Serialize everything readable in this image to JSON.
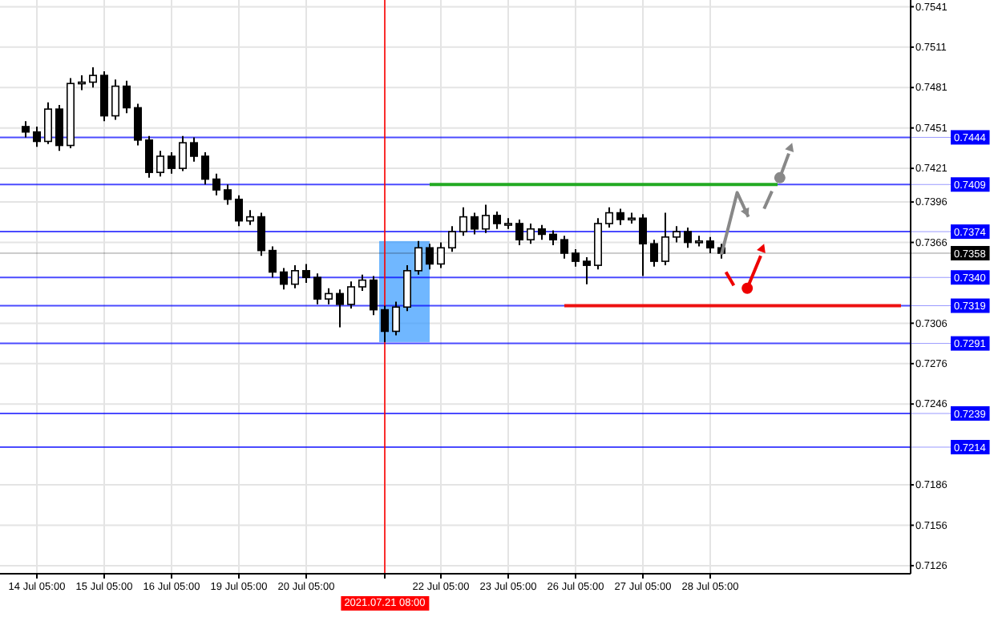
{
  "chart_data": {
    "type": "candlestick",
    "categories": [
      null,
      "14 Jul 05:00",
      null,
      null,
      null,
      null,
      null,
      "15 Jul 05:00",
      null,
      null,
      null,
      null,
      null,
      "16 Jul 05:00",
      null,
      null,
      null,
      null,
      null,
      "19 Jul 05:00",
      null,
      null,
      null,
      null,
      null,
      "20 Jul 05:00",
      null,
      null,
      null,
      null,
      null,
      null,
      "2021.07.21 08:00",
      null,
      null,
      null,
      null,
      "22 Jul 05:00",
      null,
      null,
      null,
      null,
      null,
      "23 Jul 05:00",
      null,
      null,
      null,
      null,
      null,
      "26 Jul 05:00",
      null,
      null,
      null,
      null,
      null,
      "27 Jul 05:00",
      null,
      null,
      null,
      null,
      null,
      "28 Jul 05:00",
      null,
      null,
      null,
      null,
      null,
      null,
      null,
      null,
      null,
      null,
      null,
      null,
      null,
      null,
      null,
      null,
      null
    ],
    "ohlc": [
      [
        0.7452,
        0.7456,
        0.7444,
        0.7448
      ],
      [
        0.7448,
        0.7452,
        0.7437,
        0.7441
      ],
      [
        0.7441,
        0.747,
        0.7439,
        0.7465
      ],
      [
        0.7465,
        0.7468,
        0.7434,
        0.7438
      ],
      [
        0.7438,
        0.7488,
        0.7436,
        0.7484
      ],
      [
        0.7484,
        0.749,
        0.7479,
        0.7485
      ],
      [
        0.7485,
        0.7496,
        0.7481,
        0.749
      ],
      [
        0.749,
        0.7493,
        0.7456,
        0.746
      ],
      [
        0.746,
        0.7487,
        0.7457,
        0.7482
      ],
      [
        0.7482,
        0.7486,
        0.7462,
        0.7466
      ],
      [
        0.7466,
        0.7469,
        0.7438,
        0.7442
      ],
      [
        0.7442,
        0.7445,
        0.7414,
        0.7418
      ],
      [
        0.7418,
        0.7434,
        0.7415,
        0.743
      ],
      [
        0.743,
        0.7433,
        0.7417,
        0.7421
      ],
      [
        0.7421,
        0.7445,
        0.7419,
        0.744
      ],
      [
        0.744,
        0.7444,
        0.7426,
        0.743
      ],
      [
        0.743,
        0.7433,
        0.7409,
        0.7413
      ],
      [
        0.7413,
        0.7417,
        0.7401,
        0.7405
      ],
      [
        0.7405,
        0.7409,
        0.7394,
        0.7398
      ],
      [
        0.7398,
        0.7401,
        0.7378,
        0.7382
      ],
      [
        0.7382,
        0.739,
        0.7379,
        0.7385
      ],
      [
        0.7385,
        0.7388,
        0.7356,
        0.736
      ],
      [
        0.736,
        0.7363,
        0.734,
        0.7344
      ],
      [
        0.7344,
        0.7347,
        0.7331,
        0.7335
      ],
      [
        0.7335,
        0.7349,
        0.7332,
        0.7345
      ],
      [
        0.7345,
        0.735,
        0.7336,
        0.734
      ],
      [
        0.734,
        0.7343,
        0.732,
        0.7324
      ],
      [
        0.7324,
        0.7332,
        0.732,
        0.7328
      ],
      [
        0.7328,
        0.7331,
        0.7303,
        0.732
      ],
      [
        0.732,
        0.7337,
        0.7317,
        0.7333
      ],
      [
        0.7333,
        0.7342,
        0.733,
        0.7338
      ],
      [
        0.7338,
        0.7341,
        0.7312,
        0.7316
      ],
      [
        0.7316,
        0.7319,
        0.7292,
        0.73
      ],
      [
        0.73,
        0.7322,
        0.7297,
        0.7318
      ],
      [
        0.7318,
        0.7349,
        0.7315,
        0.7345
      ],
      [
        0.7345,
        0.7367,
        0.7342,
        0.7362
      ],
      [
        0.7362,
        0.7365,
        0.7346,
        0.735
      ],
      [
        0.735,
        0.7366,
        0.7347,
        0.7362
      ],
      [
        0.7362,
        0.7378,
        0.7359,
        0.7374
      ],
      [
        0.7374,
        0.7392,
        0.7371,
        0.7385
      ],
      [
        0.7385,
        0.7388,
        0.7372,
        0.7376
      ],
      [
        0.7376,
        0.7394,
        0.7373,
        0.7386
      ],
      [
        0.7386,
        0.7389,
        0.7376,
        0.738
      ],
      [
        0.738,
        0.7384,
        0.7376,
        0.738
      ],
      [
        0.738,
        0.7383,
        0.7364,
        0.7368
      ],
      [
        0.7368,
        0.738,
        0.7365,
        0.7376
      ],
      [
        0.7376,
        0.7379,
        0.7368,
        0.7372
      ],
      [
        0.7372,
        0.7375,
        0.7364,
        0.7368
      ],
      [
        0.7368,
        0.7371,
        0.7354,
        0.7358
      ],
      [
        0.7358,
        0.7361,
        0.7348,
        0.7352
      ],
      [
        0.7352,
        0.7355,
        0.7335,
        0.7349
      ],
      [
        0.7349,
        0.7384,
        0.7346,
        0.738
      ],
      [
        0.738,
        0.7392,
        0.7377,
        0.7388
      ],
      [
        0.7388,
        0.7391,
        0.7379,
        0.7383
      ],
      [
        0.7383,
        0.7388,
        0.738,
        0.7384
      ],
      [
        0.7384,
        0.7387,
        0.7341,
        0.7365
      ],
      [
        0.7365,
        0.7368,
        0.7348,
        0.7352
      ],
      [
        0.7352,
        0.7388,
        0.7349,
        0.737
      ],
      [
        0.737,
        0.7378,
        0.7366,
        0.7374
      ],
      [
        0.7374,
        0.7377,
        0.7362,
        0.7366
      ],
      [
        0.7366,
        0.7371,
        0.7363,
        0.7367
      ],
      [
        0.7367,
        0.737,
        0.7358,
        0.7362
      ],
      [
        0.7362,
        0.7365,
        0.7354,
        0.7358
      ],
      null,
      null,
      null,
      null,
      null,
      null,
      null,
      null,
      null,
      null,
      null,
      null,
      null,
      null,
      null,
      null
    ],
    "series": [
      {
        "type": "line",
        "color": "#22aa22",
        "values": [
          null,
          null,
          null,
          null,
          null,
          null,
          null,
          null,
          null,
          null,
          null,
          null,
          null,
          null,
          null,
          null,
          null,
          null,
          null,
          null,
          null,
          null,
          null,
          null,
          null,
          null,
          null,
          null,
          null,
          null,
          null,
          null,
          null,
          null,
          null,
          null,
          0.7409,
          0.7409,
          0.7409,
          0.7409,
          0.7409,
          0.7409,
          0.7409,
          0.7409,
          0.7409,
          0.7409,
          0.7409,
          0.7409,
          0.7409,
          0.7409,
          0.7409,
          0.7409,
          0.7409,
          0.7409,
          0.7409,
          0.7409,
          0.7409,
          0.7409,
          0.7409,
          0.7409,
          0.7409,
          0.7409,
          0.7409,
          0.7409,
          0.7409,
          0.7409,
          0.7409,
          0.7409,
          null,
          null,
          null,
          null,
          null,
          null,
          null,
          null,
          null,
          null,
          null
        ]
      },
      {
        "type": "line",
        "color": "#ee1111",
        "values": [
          null,
          null,
          null,
          null,
          null,
          null,
          null,
          null,
          null,
          null,
          null,
          null,
          null,
          null,
          null,
          null,
          null,
          null,
          null,
          null,
          null,
          null,
          null,
          null,
          null,
          null,
          null,
          null,
          null,
          null,
          null,
          null,
          null,
          null,
          null,
          null,
          null,
          null,
          null,
          null,
          null,
          null,
          null,
          null,
          null,
          null,
          null,
          null,
          0.7319,
          0.7319,
          0.7319,
          0.7319,
          0.7319,
          0.7319,
          0.7319,
          0.7319,
          0.7319,
          0.7319,
          0.7319,
          0.7319,
          0.7319,
          0.7319,
          0.7319,
          0.7319,
          0.7319,
          0.7319,
          0.7319,
          0.7319,
          0.7319,
          0.7319,
          0.7319,
          0.7319,
          0.7319,
          0.7319,
          0.7319,
          0.7319,
          0.7319,
          0.7319,
          0.7319
        ]
      }
    ],
    "ylim": [
      0.712,
      0.7546
    ],
    "yticks": [
      {
        "value": 0.7541,
        "label": "0.7541"
      },
      {
        "value": 0.7511,
        "label": "0.7511"
      },
      {
        "value": 0.7481,
        "label": "0.7481"
      },
      {
        "value": 0.7451,
        "label": "0.7451"
      },
      {
        "value": 0.7421,
        "label": "0.7421"
      },
      {
        "value": 0.7396,
        "label": "0.7396"
      },
      {
        "value": 0.7366,
        "label": "0.7366"
      },
      {
        "value": 0.7306,
        "label": "0.7306"
      },
      {
        "value": 0.7276,
        "label": "0.7276"
      },
      {
        "value": 0.7246,
        "label": "0.7246"
      },
      {
        "value": 0.7186,
        "label": "0.7186"
      },
      {
        "value": 0.7156,
        "label": "0.7156"
      },
      {
        "value": 0.7126,
        "label": "0.7126"
      }
    ],
    "grid": true,
    "ref_lines": [
      {
        "axis": "y",
        "value": 0.7444,
        "label": "0.7444",
        "color": "#0000ff"
      },
      {
        "axis": "y",
        "value": 0.7409,
        "label": "0.7409",
        "color": "#0000ff"
      },
      {
        "axis": "y",
        "value": 0.7374,
        "label": "0.7374",
        "color": "#0000ff"
      },
      {
        "axis": "y",
        "value": 0.7358,
        "label": "0.7358",
        "color": "#000000"
      },
      {
        "axis": "y",
        "value": 0.734,
        "label": "0.7340",
        "color": "#0000ff"
      },
      {
        "axis": "y",
        "value": 0.7319,
        "label": "0.7319",
        "color": "#0000ff"
      },
      {
        "axis": "y",
        "value": 0.7291,
        "label": "0.7291",
        "color": "#0000ff"
      },
      {
        "axis": "y",
        "value": 0.7239,
        "label": "0.7239",
        "color": "#0000ff"
      },
      {
        "axis": "y",
        "value": 0.7214,
        "label": "0.7214",
        "color": "#0000ff"
      },
      {
        "axis": "x",
        "value": "2021.07.21 08:00",
        "color": "#ff0000"
      }
    ]
  }
}
